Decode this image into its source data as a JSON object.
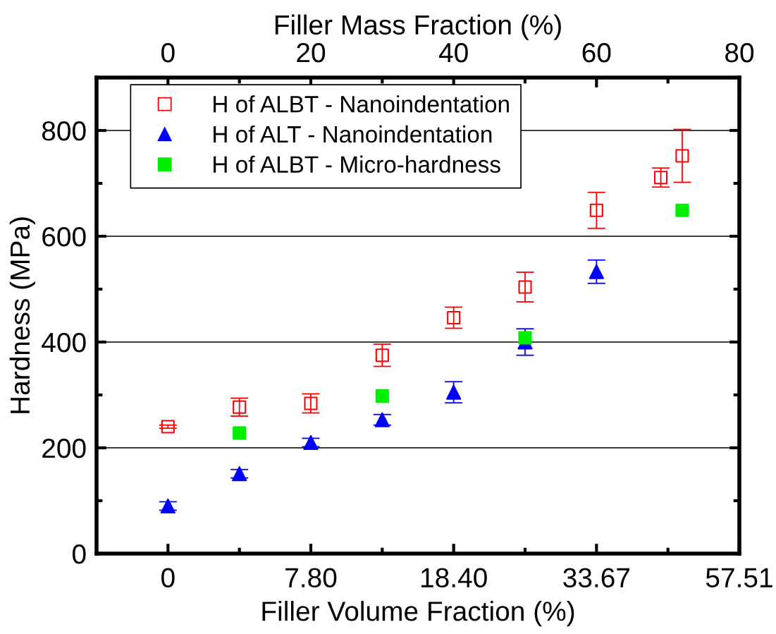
{
  "chart_data": {
    "type": "scatter",
    "xlabel": "Filler Mass Fraction (%)",
    "x2label": "Filler Volume Fraction (%)",
    "ylabel": "Hardness (MPa)",
    "xlim": [
      -10,
      80
    ],
    "ylim": [
      0,
      900
    ],
    "xticks": [
      0,
      {
        "value": 10,
        "label": null
      },
      20,
      {
        "value": 30,
        "label": null
      },
      40,
      {
        "value": 50,
        "label": null
      },
      60,
      {
        "value": 70,
        "label": null
      },
      80
    ],
    "yticks": [
      0,
      {
        "value": 100,
        "label": null
      },
      200,
      {
        "value": 300,
        "label": null
      },
      400,
      {
        "value": 500,
        "label": null
      },
      600,
      {
        "value": 700,
        "label": null
      },
      800
    ],
    "annotations": [
      {
        "text": "0",
        "x": 0
      },
      {
        "text": "7.80",
        "x": 20
      },
      {
        "text": "18.40",
        "x": 40
      },
      {
        "text": "33.67",
        "x": 60
      },
      "57.51"
    ],
    "grid": "y",
    "legend": "top left",
    "series": [
      {
        "name": "H of ALBT - Nanoindentation",
        "color": "#ff0000",
        "marker": "square-open",
        "x": [
          0,
          10,
          20,
          30,
          40,
          50,
          60,
          69,
          72
        ],
        "values": [
          240,
          277,
          284,
          375,
          446,
          504,
          649,
          711,
          752
        ],
        "errors": [
          3,
          17,
          18,
          21,
          20,
          28,
          34,
          18,
          50
        ]
      },
      {
        "name": "H of ALT - Nanoindentation",
        "color": "#0000ff",
        "marker": "triangle",
        "x": [
          0,
          10,
          20,
          30,
          40,
          50,
          60
        ],
        "values": [
          90,
          151,
          210,
          253,
          305,
          400,
          533
        ],
        "errors": [
          8,
          8,
          8,
          10,
          20,
          25,
          22
        ]
      },
      {
        "name": "H of ALBT - Micro-hardness",
        "color": "#00ee00",
        "marker": "square",
        "x": [
          10,
          30,
          50,
          72
        ],
        "values": [
          228,
          298,
          408,
          649
        ]
      }
    ]
  }
}
